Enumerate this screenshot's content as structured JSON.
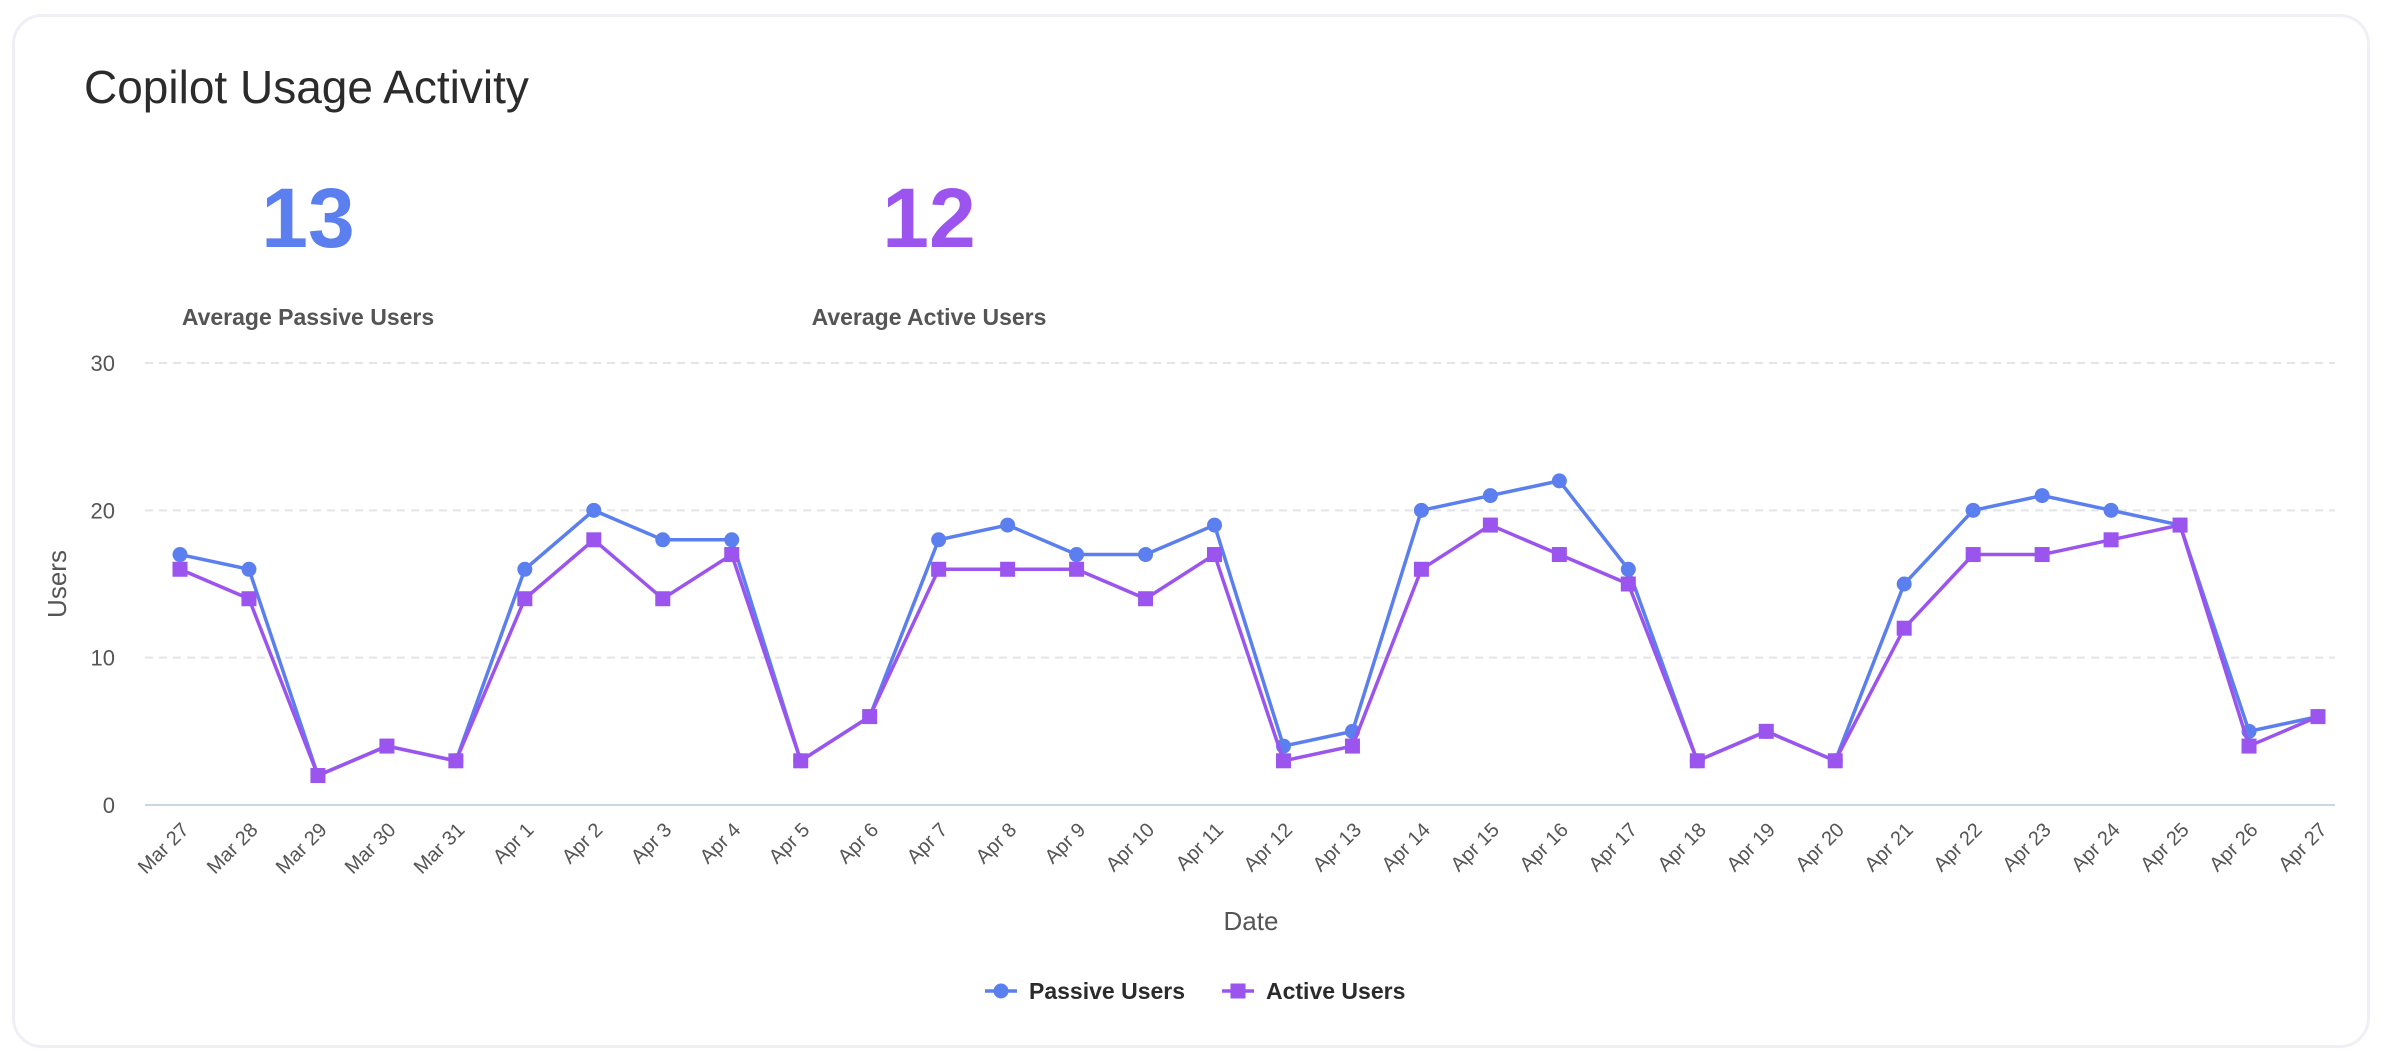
{
  "card": {
    "title": "Copilot Usage Activity"
  },
  "stats": [
    {
      "value": "13",
      "label": "Average Passive Users",
      "color": "#5b7fee"
    },
    {
      "value": "12",
      "label": "Average Active Users",
      "color": "#9b55ee"
    }
  ],
  "chart_data": {
    "type": "line",
    "xlabel": "Date",
    "ylabel": "Users",
    "ylim": [
      0,
      30
    ],
    "yticks": [
      0,
      10,
      20,
      30
    ],
    "grid": true,
    "legend_position": "bottom-center",
    "categories": [
      "Mar 27",
      "Mar 28",
      "Mar 29",
      "Mar 30",
      "Mar 31",
      "Apr 1",
      "Apr 2",
      "Apr 3",
      "Apr 4",
      "Apr 5",
      "Apr 6",
      "Apr 7",
      "Apr 8",
      "Apr 9",
      "Apr 10",
      "Apr 11",
      "Apr 12",
      "Apr 13",
      "Apr 14",
      "Apr 15",
      "Apr 16",
      "Apr 17",
      "Apr 18",
      "Apr 19",
      "Apr 20",
      "Apr 21",
      "Apr 22",
      "Apr 23",
      "Apr 24",
      "Apr 25",
      "Apr 26",
      "Apr 27"
    ],
    "series": [
      {
        "name": "Passive Users",
        "marker": "circle",
        "color": "#5b7fee",
        "values": [
          17,
          16,
          2,
          4,
          3,
          16,
          20,
          18,
          18,
          3,
          6,
          18,
          19,
          17,
          17,
          19,
          4,
          5,
          20,
          21,
          22,
          16,
          3,
          5,
          3,
          15,
          20,
          21,
          20,
          19,
          5,
          6
        ]
      },
      {
        "name": "Active Users",
        "marker": "square",
        "color": "#9b55ee",
        "values": [
          16,
          14,
          2,
          4,
          3,
          14,
          18,
          14,
          17,
          3,
          6,
          16,
          16,
          16,
          14,
          17,
          3,
          4,
          16,
          19,
          17,
          15,
          3,
          5,
          3,
          12,
          17,
          17,
          18,
          19,
          4,
          6
        ]
      }
    ]
  }
}
